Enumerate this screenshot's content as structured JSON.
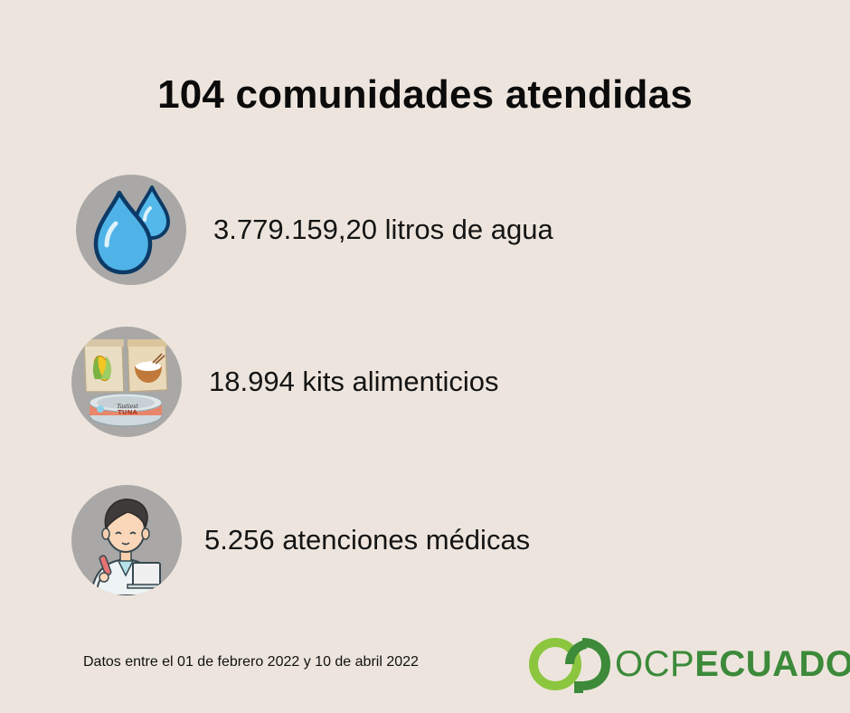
{
  "title": "104 comunidades atendidas",
  "stats": [
    {
      "icon": "water-drops-icon",
      "text": "3.779.159,20 litros de agua"
    },
    {
      "icon": "food-kit-icon",
      "text": "18.994 kits alimenticios"
    },
    {
      "icon": "doctor-icon",
      "text": "5.256 atenciones médicas"
    }
  ],
  "food_icon_labels": {
    "can_line1": "Tastiest",
    "can_line2": "TUNA"
  },
  "footnote": "Datos entre el 01 de febrero 2022 y 10 de abril 2022",
  "logo": {
    "part1": "OCP",
    "part2": "ECUADOR"
  },
  "colors": {
    "background": "#ede5dd",
    "icon_circle": "#a9a8a7",
    "logo_green": "#3c8a3a",
    "logo_light_green": "#8cc63f",
    "water_blue": "#4fb3e8"
  }
}
